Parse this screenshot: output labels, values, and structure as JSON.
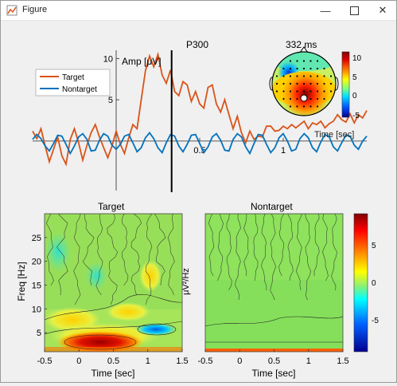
{
  "window": {
    "title": "Figure",
    "icons": [
      "matlab-figure-icon",
      "minimize-icon",
      "maximize-icon",
      "close-icon"
    ]
  },
  "chart_data": [
    {
      "type": "line",
      "title": "P300",
      "ylabel": "Amp [μV]",
      "xlabel": "Time [sec]",
      "x_ticks": [
        0.5,
        1
      ],
      "y_ticks": [
        5,
        10
      ],
      "xlim": [
        -0.5,
        1.5
      ],
      "ylim": [
        -6,
        11
      ],
      "marker_x": 0.332,
      "legend": {
        "position": "top-left",
        "entries": [
          "Target",
          "Nontarget"
        ]
      },
      "series": [
        {
          "name": "Target",
          "color": "#d95319",
          "x": [
            -0.5,
            -0.475,
            -0.45,
            -0.425,
            -0.4,
            -0.375,
            -0.35,
            -0.325,
            -0.3,
            -0.275,
            -0.25,
            -0.225,
            -0.2,
            -0.175,
            -0.15,
            -0.125,
            -0.1,
            -0.075,
            -0.05,
            -0.025,
            0,
            0.025,
            0.05,
            0.075,
            0.1,
            0.125,
            0.15,
            0.175,
            0.2,
            0.225,
            0.25,
            0.275,
            0.3,
            0.325,
            0.35,
            0.375,
            0.4,
            0.425,
            0.45,
            0.475,
            0.5,
            0.525,
            0.55,
            0.575,
            0.6,
            0.625,
            0.65,
            0.675,
            0.7,
            0.725,
            0.75,
            0.775,
            0.8,
            0.825,
            0.85,
            0.875,
            0.9,
            0.925,
            0.95,
            0.975,
            1,
            1.025,
            1.05,
            1.075,
            1.1,
            1.125,
            1.15,
            1.175,
            1.2,
            1.225,
            1.25,
            1.275,
            1.3,
            1.325,
            1.35,
            1.375,
            1.4,
            1.425,
            1.45,
            1.475,
            1.5
          ],
          "y": [
            1.2,
            0.3,
            1.5,
            -0.6,
            -2.5,
            -1.0,
            0.5,
            -1.8,
            -2.8,
            0.2,
            1.5,
            -0.2,
            -2.3,
            -0.5,
            1.0,
            2.0,
            0.5,
            -0.8,
            -2.0,
            -0.6,
            1.2,
            -0.4,
            -1.5,
            0.4,
            2.0,
            1.5,
            5.0,
            8.5,
            10.3,
            9.0,
            10.5,
            8.0,
            7.0,
            8.6,
            6.0,
            5.5,
            7.2,
            6.8,
            4.8,
            6.0,
            4.5,
            4.0,
            6.5,
            6.8,
            4.5,
            3.5,
            5.0,
            3.2,
            1.5,
            3.0,
            1.0,
            -0.2,
            1.2,
            0.2,
            0.6,
            0.5,
            1.8,
            1.8,
            1.2,
            1.3,
            1.8,
            1.5,
            2.0,
            1.6,
            2.0,
            2.4,
            1.5,
            2.2,
            2.0,
            2.4,
            1.6,
            2.1,
            2.4,
            3.2,
            2.6,
            2.3,
            3.3,
            2.2,
            3.2,
            2.8,
            3.7
          ]
        },
        {
          "name": "Nontarget",
          "color": "#0072bd",
          "x": [
            -0.5,
            -0.475,
            -0.45,
            -0.425,
            -0.4,
            -0.375,
            -0.35,
            -0.325,
            -0.3,
            -0.275,
            -0.25,
            -0.225,
            -0.2,
            -0.175,
            -0.15,
            -0.125,
            -0.1,
            -0.075,
            -0.05,
            -0.025,
            0,
            0.025,
            0.05,
            0.075,
            0.1,
            0.125,
            0.15,
            0.175,
            0.2,
            0.225,
            0.25,
            0.275,
            0.3,
            0.325,
            0.35,
            0.375,
            0.4,
            0.425,
            0.45,
            0.475,
            0.5,
            0.525,
            0.55,
            0.575,
            0.6,
            0.625,
            0.65,
            0.675,
            0.7,
            0.725,
            0.75,
            0.775,
            0.8,
            0.825,
            0.85,
            0.875,
            0.9,
            0.925,
            0.95,
            0.975,
            1,
            1.025,
            1.05,
            1.075,
            1.1,
            1.125,
            1.15,
            1.175,
            1.2,
            1.225,
            1.25,
            1.275,
            1.3,
            1.325,
            1.35,
            1.375,
            1.4,
            1.425,
            1.45,
            1.475,
            1.5
          ],
          "y": [
            0.2,
            0.8,
            0.3,
            -0.6,
            -1.2,
            -0.3,
            0.7,
            0.6,
            -0.4,
            -1.5,
            -0.6,
            0.5,
            0.9,
            0.2,
            -1.2,
            -1.1,
            0.1,
            0.9,
            0.6,
            -0.5,
            -1.0,
            -0.4,
            0.6,
            0.8,
            -0.2,
            -1.3,
            -0.8,
            0.4,
            1.0,
            0.3,
            -0.8,
            -1.4,
            -0.2,
            0.8,
            0.6,
            -0.6,
            -1.3,
            -0.4,
            0.7,
            0.8,
            -0.3,
            -1.4,
            -0.7,
            0.5,
            0.9,
            0.1,
            -1.1,
            -1.2,
            0.2,
            0.9,
            0.5,
            -0.7,
            -1.5,
            -0.3,
            0.8,
            0.7,
            -0.4,
            -1.4,
            -0.8,
            0.4,
            0.9,
            0.0,
            -1.2,
            -1.0,
            0.3,
            0.9,
            0.4,
            -0.8,
            -1.3,
            -0.1,
            0.8,
            0.5,
            -0.7,
            -1.2,
            -0.2,
            0.7,
            0.6,
            -0.5,
            -1.0,
            0.0,
            0.6
          ]
        }
      ]
    },
    {
      "type": "heatmap",
      "title": "332 ms",
      "description": "scalp topography (head map)",
      "colorbar": {
        "ticks": [
          10,
          5,
          0,
          -5
        ],
        "range": [
          -6,
          11
        ]
      },
      "hotspot": {
        "x": 0.05,
        "y": -0.25,
        "value": 10.5
      },
      "coldspot": {
        "x": -0.45,
        "y": 0.35,
        "value": -4.5
      }
    },
    {
      "type": "heatmap",
      "title": "Target",
      "xlabel": "Time [sec]",
      "ylabel": "Freq [Hz]",
      "x_ticks": [
        "-0.5",
        "0",
        "0.5",
        "1",
        "1.5"
      ],
      "y_ticks": [
        "5",
        "10",
        "15",
        "20",
        "25"
      ],
      "xlim": [
        -0.5,
        1.5
      ],
      "ylim": [
        1,
        30
      ]
    },
    {
      "type": "heatmap",
      "title": "Nontarget",
      "xlabel": "Time [sec]",
      "x_ticks": [
        "-0.5",
        "0",
        "0.5",
        "1",
        "1.5"
      ],
      "xlim": [
        -0.5,
        1.5
      ],
      "ylim": [
        1,
        30
      ],
      "colorbar": {
        "label": "μV²/Hz",
        "ticks": [
          "5",
          "0",
          "-5"
        ],
        "range": [
          -9,
          9
        ]
      }
    }
  ]
}
